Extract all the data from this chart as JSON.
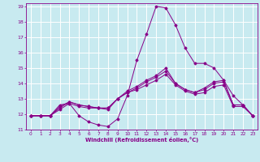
{
  "title": "",
  "xlabel": "Windchill (Refroidissement éolien,°C)",
  "xlim": [
    -0.5,
    23.5
  ],
  "ylim": [
    11,
    19.2
  ],
  "yticks": [
    11,
    12,
    13,
    14,
    15,
    16,
    17,
    18,
    19
  ],
  "xticks": [
    0,
    1,
    2,
    3,
    4,
    5,
    6,
    7,
    8,
    9,
    10,
    11,
    12,
    13,
    14,
    15,
    16,
    17,
    18,
    19,
    20,
    21,
    22,
    23
  ],
  "bg_color": "#c8eaf0",
  "line_color": "#880088",
  "grid_color": "#ffffff",
  "lines": [
    [
      11.9,
      11.9,
      11.9,
      12.3,
      12.7,
      11.9,
      11.5,
      11.3,
      11.2,
      11.7,
      13.2,
      15.5,
      17.2,
      19.0,
      18.9,
      17.8,
      16.3,
      15.3,
      15.3,
      15.0,
      14.2,
      13.2,
      12.6,
      11.9
    ],
    [
      11.9,
      11.9,
      11.9,
      12.4,
      12.8,
      12.6,
      12.5,
      12.4,
      12.3,
      13.0,
      13.4,
      13.7,
      14.1,
      14.4,
      14.8,
      14.0,
      13.6,
      13.4,
      13.6,
      14.0,
      14.1,
      12.6,
      12.6,
      11.9
    ],
    [
      11.9,
      11.9,
      11.9,
      12.5,
      12.8,
      12.6,
      12.5,
      12.4,
      12.4,
      13.0,
      13.5,
      13.8,
      14.2,
      14.5,
      15.0,
      14.0,
      13.6,
      13.4,
      13.7,
      14.1,
      14.2,
      12.6,
      12.6,
      11.9
    ],
    [
      11.9,
      11.9,
      11.9,
      12.6,
      12.7,
      12.5,
      12.4,
      12.4,
      12.4,
      13.0,
      13.4,
      13.6,
      13.9,
      14.2,
      14.6,
      13.9,
      13.5,
      13.3,
      13.4,
      13.8,
      13.9,
      12.5,
      12.5,
      11.9
    ]
  ]
}
